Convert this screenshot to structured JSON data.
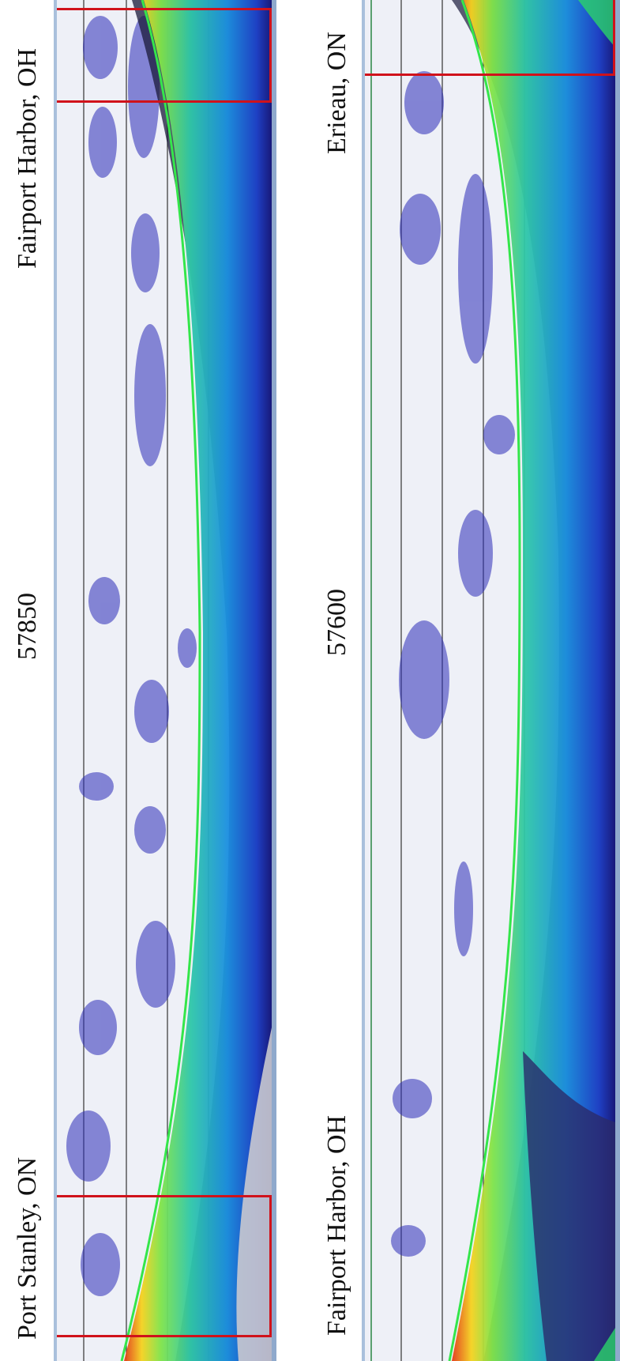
{
  "left_panel": {
    "label_top": "Fairport Harbor, OH",
    "label_mid": "57850",
    "label_bottom": "Port Stanley, ON"
  },
  "right_panel": {
    "label_top": "Erieau, ON",
    "label_mid": "57600",
    "label_bottom": "Fairport Harbor, OH"
  },
  "highlight_color": "#d0121b"
}
